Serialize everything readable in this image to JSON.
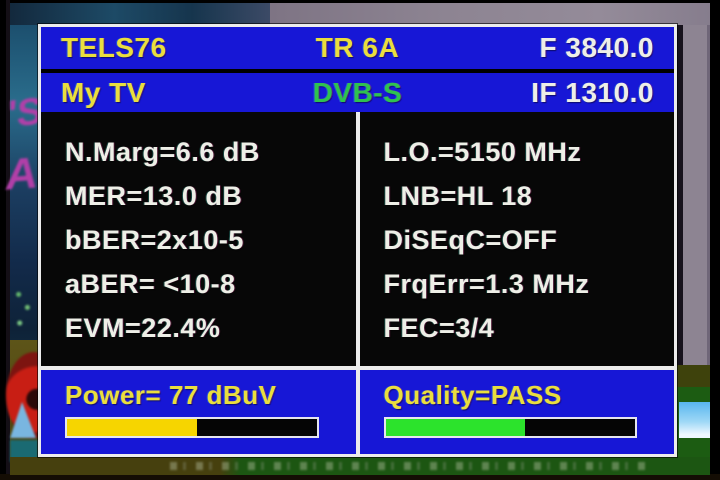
{
  "header": {
    "row1": {
      "satellite": "TELS76",
      "transponder": "TR 6A",
      "frequency": "F 3840.0"
    },
    "row2": {
      "profile": "My TV",
      "standard": "DVB-S",
      "if_frequency": "IF 1310.0"
    }
  },
  "symbols": {
    "equals": "="
  },
  "measurements": {
    "left": [
      {
        "label": "N.Marg",
        "value": "6.6 dB"
      },
      {
        "label": "MER",
        "value": "13.0 dB"
      },
      {
        "label": "bBER",
        "value": "2x10-5"
      },
      {
        "label": "aBER",
        "value": " <10-8"
      },
      {
        "label": "EVM",
        "value": "22.4%"
      }
    ],
    "right": [
      {
        "label": "L.O.",
        "value": "5150 MHz"
      },
      {
        "label": "LNB",
        "value": "HL 18"
      },
      {
        "label": "DiSEqC",
        "value": "OFF"
      },
      {
        "label": "FrqErr",
        "value": "1.3 MHz"
      },
      {
        "label": "FEC",
        "value": "3/4"
      }
    ]
  },
  "power": {
    "label": "Power",
    "value": " 77 dBuV",
    "percent": 52,
    "bar_color": "#f6d500"
  },
  "quality": {
    "label": "Quality",
    "value": "PASS",
    "percent": 56,
    "bar_color": "#2ce32c"
  },
  "background": {
    "glyphs": [
      "'S",
      "A"
    ]
  },
  "colors": {
    "panel_blue": "#1717d6",
    "text_yellow": "#e9de3e",
    "text_white": "#eeefe7",
    "text_green": "#2fc24f",
    "bar_power": "#f6d500",
    "bar_quality": "#2ce32c",
    "border_white": "#ececec"
  }
}
